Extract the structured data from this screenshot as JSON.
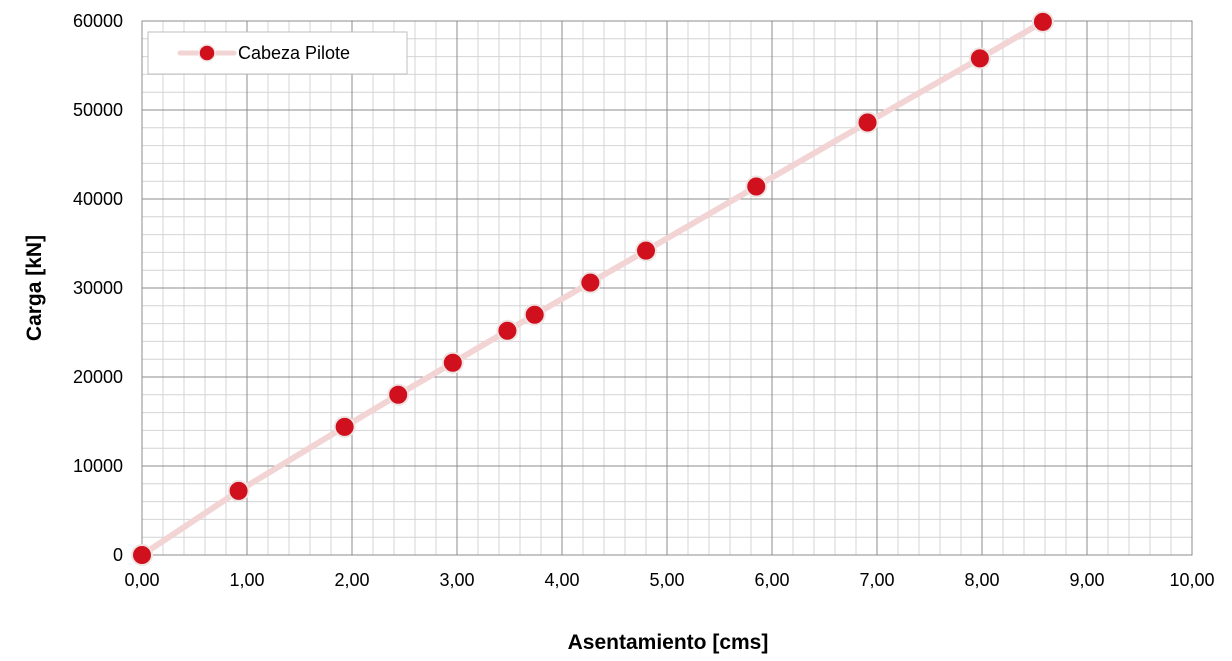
{
  "chart_data": {
    "type": "line",
    "title": "",
    "xlabel": "Asentamiento [cms]",
    "ylabel": "Carga [kN]",
    "xlim": [
      0,
      10
    ],
    "ylim": [
      0,
      60000
    ],
    "x_ticks": [
      "0,00",
      "1,00",
      "2,00",
      "3,00",
      "4,00",
      "5,00",
      "6,00",
      "7,00",
      "8,00",
      "9,00",
      "10,00"
    ],
    "y_ticks": [
      "0",
      "10000",
      "20000",
      "30000",
      "40000",
      "50000",
      "60000"
    ],
    "grid": true,
    "minor_grid": true,
    "legend_position": "top-left",
    "series": [
      {
        "name": "Cabeza Pilote",
        "line_color": "#f2d4d4",
        "marker_color": "#d0101c",
        "x": [
          0.0,
          0.92,
          1.93,
          2.44,
          2.96,
          3.48,
          3.74,
          4.27,
          4.8,
          5.85,
          6.91,
          7.98,
          8.58
        ],
        "y": [
          0,
          7200,
          14400,
          18000,
          21600,
          25200,
          27000,
          30600,
          34200,
          41400,
          48600,
          55800,
          59900
        ]
      }
    ]
  }
}
